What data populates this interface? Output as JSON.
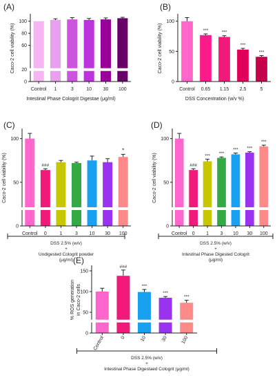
{
  "figure": {
    "colors": {
      "axis": "#222222",
      "text": "#222222",
      "star": "#222222"
    }
  },
  "chart_data": [
    {
      "panel": "(A)",
      "type": "bar",
      "ylabel": "Caco-2 cell viability (%)",
      "xlabel": "Intestinal Phase Cologrit Digestae (μg/ml)",
      "ylim": [
        0,
        110
      ],
      "yticks": [
        0,
        20,
        60,
        80,
        100
      ],
      "axis_break": true,
      "categories": [
        "Control",
        "1",
        "3",
        "10",
        "30",
        "100"
      ],
      "values": [
        100,
        102,
        103,
        102,
        103,
        105
      ],
      "errors": [
        0,
        2,
        3,
        2.5,
        2.5,
        1.5
      ],
      "stars": [
        "",
        "",
        "",
        "",
        "",
        ""
      ],
      "colors": [
        "#f4b5f0",
        "#e8a0ee",
        "#cc55dd",
        "#bb33dd",
        "#990099",
        "#660066"
      ],
      "x_rotate": false,
      "dss_caption": []
    },
    {
      "panel": "(B)",
      "type": "bar",
      "ylabel": "Caco-2 cell viability (%)",
      "xlabel": "DSS Concentration (w/v %)",
      "ylim": [
        0,
        110
      ],
      "yticks": [
        0,
        50,
        100
      ],
      "axis_break": false,
      "categories": [
        "Control",
        "0.65",
        "1.15",
        "2.5",
        "5"
      ],
      "values": [
        100,
        77,
        74,
        53,
        41
      ],
      "errors": [
        6,
        2,
        2,
        2,
        2
      ],
      "stars": [
        "",
        "***",
        "***",
        "***",
        "***"
      ],
      "colors": [
        "#ff66cc",
        "#ff1a8c",
        "#f01a7a",
        "#e0005a",
        "#c4004a"
      ],
      "x_rotate": false,
      "dss_caption": []
    },
    {
      "panel": "(C)",
      "type": "bar",
      "ylabel": "Caco-2 cell viability (%)",
      "xlabel": "",
      "ylim": [
        0,
        110
      ],
      "yticks": [
        0,
        50,
        100
      ],
      "axis_break": true,
      "categories": [
        "Control",
        "0",
        "1",
        "3",
        "10",
        "30",
        "100"
      ],
      "values": [
        100,
        64,
        73,
        72,
        75,
        73,
        79
      ],
      "errors": [
        6,
        1.5,
        2,
        1,
        5,
        4,
        3
      ],
      "stars": [
        "",
        "###",
        "",
        "",
        "",
        "",
        "*"
      ],
      "colors": [
        "#ff66cc",
        "#f01a7a",
        "#c7c700",
        "#33aa44",
        "#1aa0f0",
        "#9933ee",
        "#ff8a8a"
      ],
      "x_rotate": false,
      "dss_caption": [
        "DSS 2.5% (w/v)",
        "+",
        "Undigested Cologrit powder",
        "(μg/ml)"
      ]
    },
    {
      "panel": "(D)",
      "type": "bar",
      "ylabel": "Caco-2 cell viability (%)",
      "xlabel": "",
      "ylim": [
        0,
        110
      ],
      "yticks": [
        0,
        50,
        100
      ],
      "axis_break": true,
      "categories": [
        "Control",
        "0",
        "1",
        "3",
        "10",
        "30",
        "100"
      ],
      "values": [
        100,
        64,
        74,
        78,
        82,
        84,
        91
      ],
      "errors": [
        6,
        1.5,
        2.5,
        1,
        1.5,
        1,
        1.5
      ],
      "stars": [
        "",
        "###",
        "***",
        "***",
        "***",
        "***",
        "***"
      ],
      "colors": [
        "#ff66cc",
        "#f01a7a",
        "#c7c700",
        "#33aa44",
        "#1aa0f0",
        "#9933ee",
        "#ff8a8a"
      ],
      "x_rotate": false,
      "dss_caption": [
        "DSS 2.5% (w/v)",
        "+",
        "Intestinal Phase Digested Cologrit",
        "(μg/ml)"
      ]
    },
    {
      "panel": "(E)",
      "type": "bar",
      "ylabel": "% ROS generation in Caco-2 cells",
      "xlabel": "",
      "ylim": [
        0,
        160
      ],
      "yticks": [
        0,
        50,
        100,
        150
      ],
      "axis_break": true,
      "categories": [
        "Control",
        "0",
        "10",
        "30",
        "100"
      ],
      "values": [
        100,
        138,
        99,
        85,
        73
      ],
      "errors": [
        8,
        14,
        6,
        3,
        6
      ],
      "stars": [
        "",
        "###",
        "***",
        "***",
        "***"
      ],
      "colors": [
        "#ff66cc",
        "#f01a7a",
        "#1aa0f0",
        "#9933ee",
        "#ff8a8a"
      ],
      "x_rotate": true,
      "dss_caption": [
        "DSS 2.5% (w/v)",
        "+",
        "Intestinal Phase Digestaed Cologrit (μg/ml)"
      ]
    }
  ]
}
